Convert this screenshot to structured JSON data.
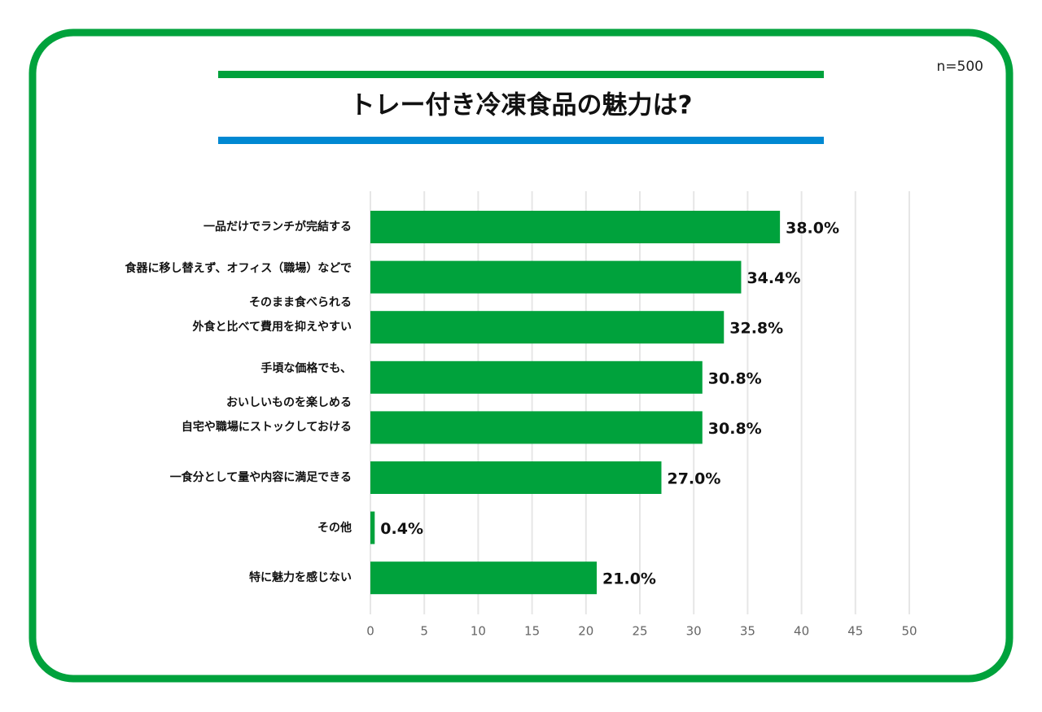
{
  "chart_data": {
    "type": "barh",
    "title": "トレー付き冷凍食品の魅力は?",
    "sample_size": "n=500",
    "categories": [
      "一品だけでランチが完結する",
      "食器に移し替えず、オフィス（職場）などで\nそのまま食べられる",
      "外食と比べて費用を抑えやすい",
      "手頃な価格でも、\nおいしいものを楽しめる",
      "自宅や職場にストックしておける",
      "一食分として量や内容に満足できる",
      "その他",
      "特に魅力を感じない"
    ],
    "values": [
      38.0,
      34.4,
      32.8,
      30.8,
      30.8,
      27.0,
      0.4,
      21.0
    ],
    "value_labels": [
      "38.0%",
      "34.4%",
      "32.8%",
      "30.8%",
      "30.8%",
      "27.0%",
      "0.4%",
      "21.0%"
    ],
    "color": "#00a23c",
    "xlim": [
      0,
      50
    ],
    "xticks": [
      0,
      5,
      10,
      15,
      20,
      25,
      30,
      35,
      40,
      45,
      50
    ],
    "grid": true
  }
}
